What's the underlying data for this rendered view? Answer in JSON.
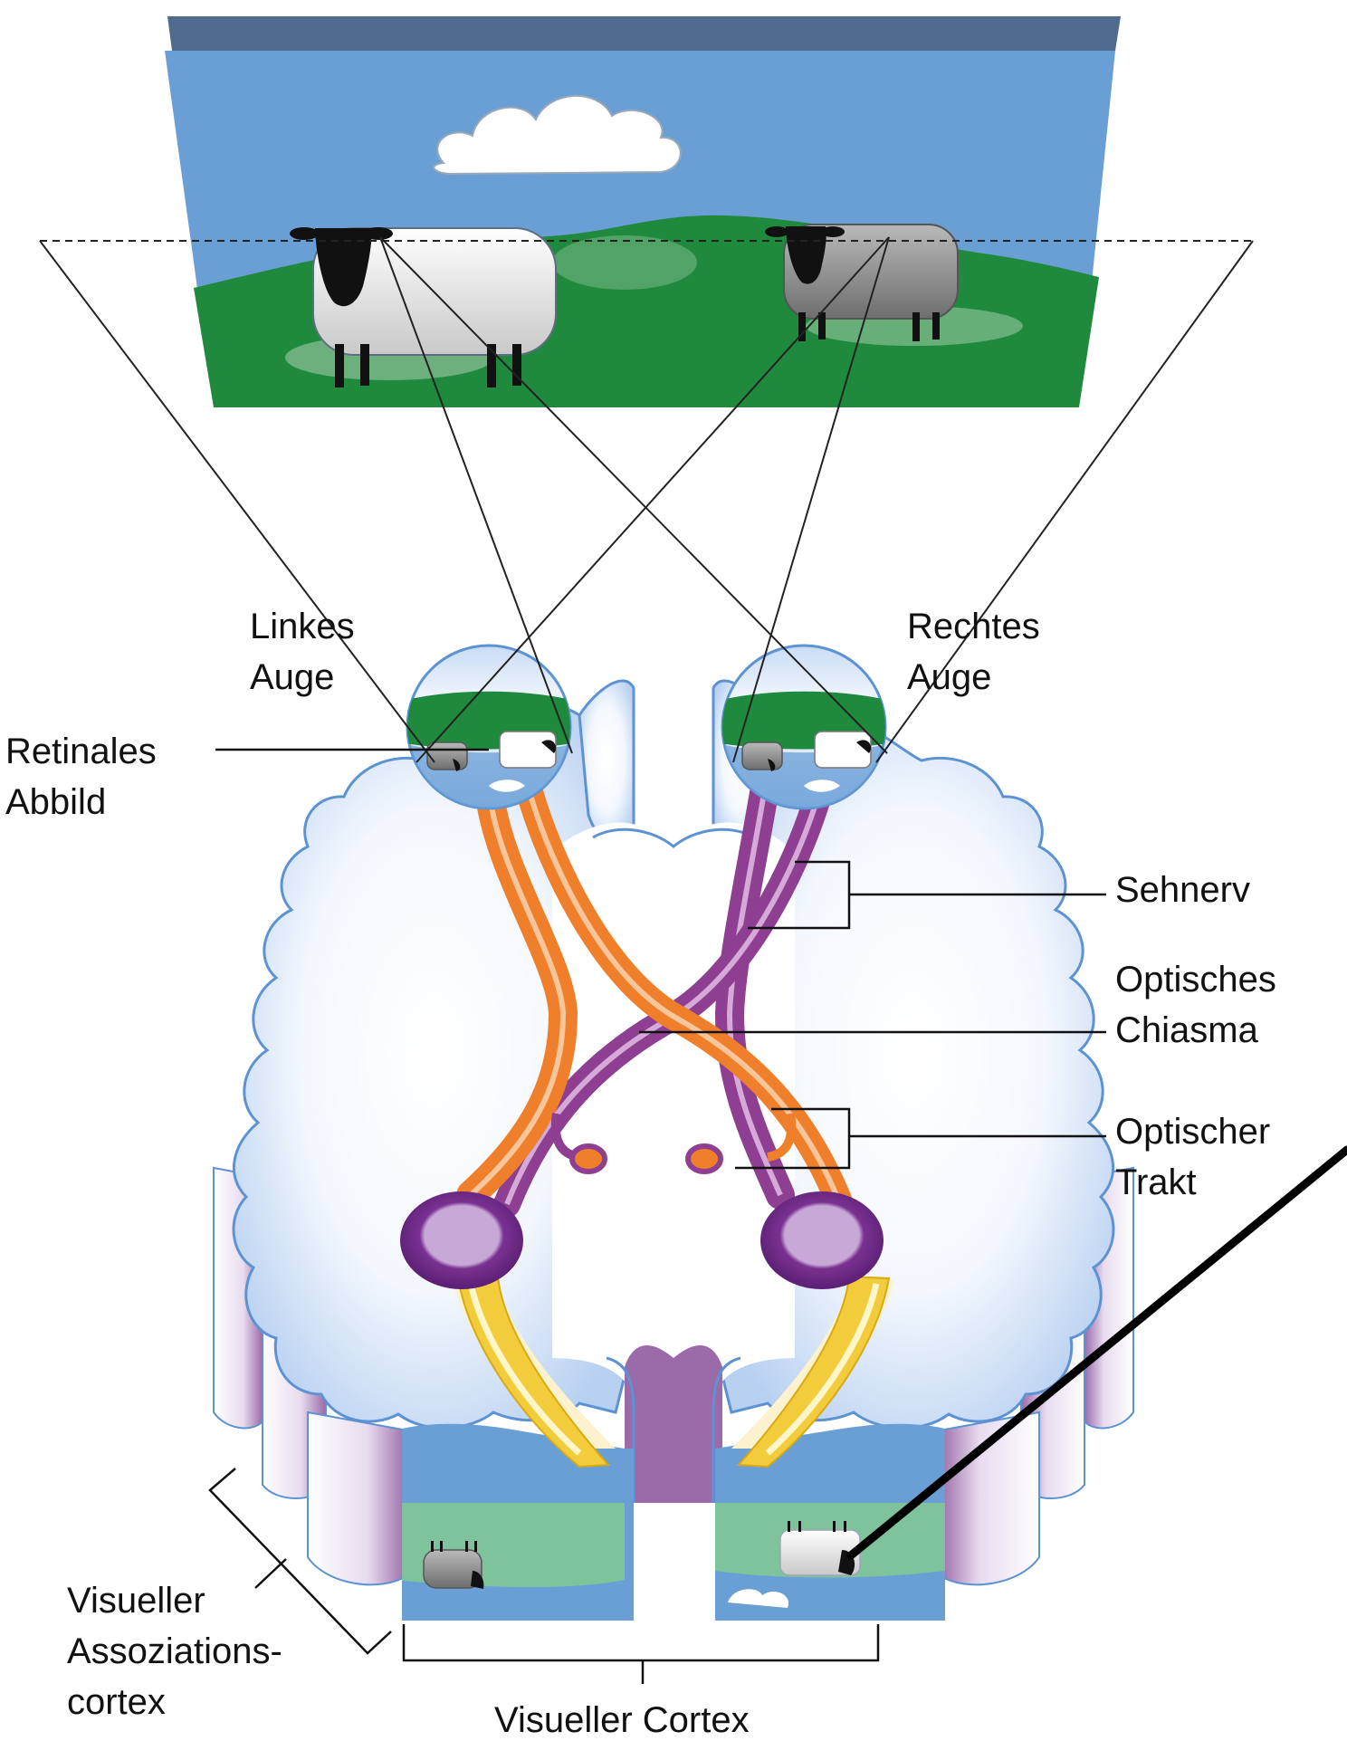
{
  "labels": {
    "left_eye": [
      "Linkes",
      "Auge"
    ],
    "right_eye": [
      "Rechtes",
      "Auge"
    ],
    "retinal_image": [
      "Retinales",
      "Abbild"
    ],
    "optic_nerve": [
      "Sehnerv"
    ],
    "optic_chiasm": [
      "Optisches",
      "Chiasma"
    ],
    "optic_tract": [
      "Optischer",
      "Trakt"
    ],
    "visual_association_cortex": [
      "Visueller",
      "Assoziations-",
      "cortex"
    ],
    "visual_cortex": [
      "Visueller Cortex"
    ]
  },
  "colors": {
    "sky": "#6a9fd6",
    "grass": "#1f8a3e",
    "brain": "#dfe9f8",
    "brain_outline": "#5d93d3",
    "left_pathway": "#ef7f2a",
    "right_pathway": "#8e3f92",
    "radiation": "#f3cc3c",
    "geniculate": "#6b2a86",
    "cortex_purple": "#9b6aa8"
  }
}
